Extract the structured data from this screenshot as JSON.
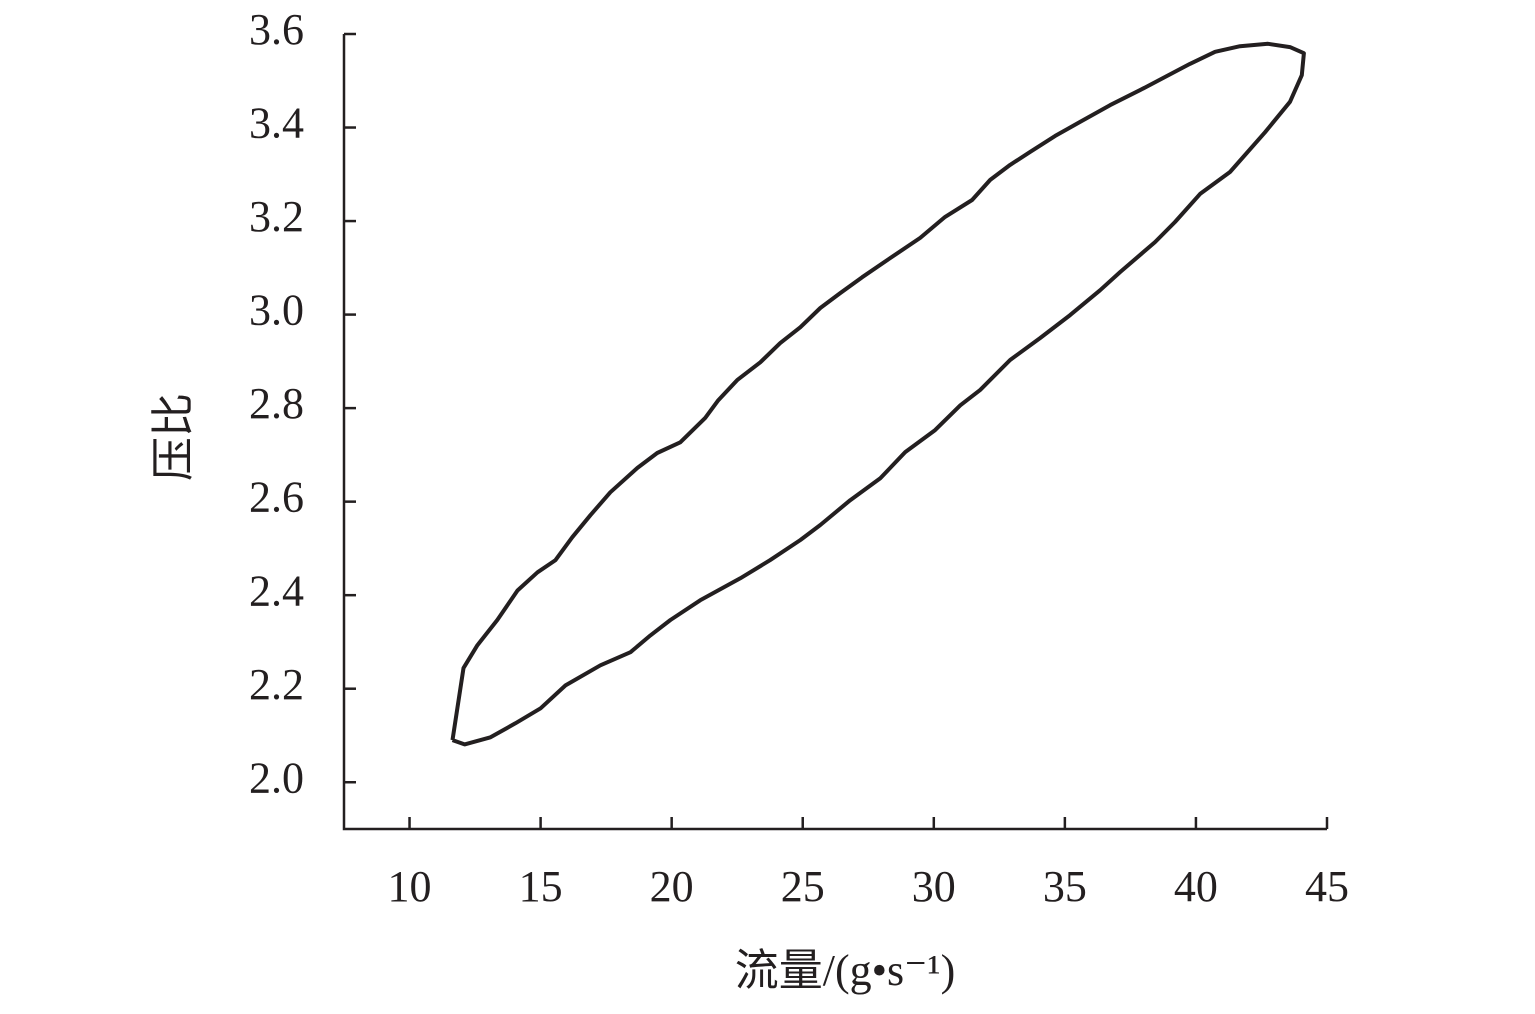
{
  "chart_data": {
    "type": "line",
    "color": "#231f20",
    "x_label": "流量/(g•s⁻¹)",
    "y_label": "压比",
    "xlim": [
      7.5,
      45
    ],
    "ylim": [
      1.9,
      3.6
    ],
    "xticks": [
      10,
      15,
      20,
      25,
      30,
      35,
      40,
      45
    ],
    "yticks": [
      {
        "value": 2,
        "label": "2.0"
      },
      2.2,
      2.4,
      2.6,
      2.8,
      {
        "value": 3,
        "label": "3.0"
      },
      3.2,
      3.4,
      3.6
    ],
    "grid": false,
    "x": [
      11.64,
      12.06,
      12.59,
      13.35,
      14.12,
      14.88,
      15.57,
      16.21,
      16.9,
      17.66,
      18.69,
      19.45,
      20.33,
      21.28,
      21.78,
      22.5,
      23.38,
      24.14,
      24.91,
      25.67,
      26.43,
      27.27,
      28.34,
      29.48,
      30.43,
      31.46,
      32.15,
      32.91,
      33.68,
      34.63,
      35.58,
      36.73,
      37.87,
      38.82,
      39.77,
      40.73,
      41.68,
      42.75,
      43.59,
      44.12,
      44.04,
      43.59,
      42.64,
      41.3,
      40.16,
      39.2,
      38.44,
      37.11,
      36.34,
      35.2,
      34.06,
      32.91,
      31.77,
      31.01,
      30.05,
      28.91,
      27.96,
      26.81,
      25.67,
      24.91,
      23.76,
      22.62,
      21.09,
      19.95,
      19.19,
      18.43,
      17.28,
      15.95,
      15.0,
      14.04,
      13.09,
      12.1,
      11.64
    ],
    "values": [
      2.09,
      2.244,
      2.293,
      2.347,
      2.41,
      2.449,
      2.475,
      2.524,
      2.571,
      2.62,
      2.672,
      2.704,
      2.727,
      2.779,
      2.817,
      2.86,
      2.898,
      2.939,
      2.973,
      3.014,
      3.046,
      3.08,
      3.121,
      3.164,
      3.209,
      3.245,
      3.288,
      3.32,
      3.348,
      3.382,
      3.412,
      3.448,
      3.48,
      3.508,
      3.536,
      3.562,
      3.574,
      3.579,
      3.572,
      3.559,
      3.512,
      3.455,
      3.39,
      3.305,
      3.258,
      3.198,
      3.155,
      3.091,
      3.052,
      2.999,
      2.95,
      2.903,
      2.839,
      2.806,
      2.753,
      2.706,
      2.65,
      2.603,
      2.55,
      2.518,
      2.475,
      2.436,
      2.389,
      2.347,
      2.314,
      2.278,
      2.25,
      2.207,
      2.158,
      2.126,
      2.096,
      2.081,
      2.09
    ]
  }
}
